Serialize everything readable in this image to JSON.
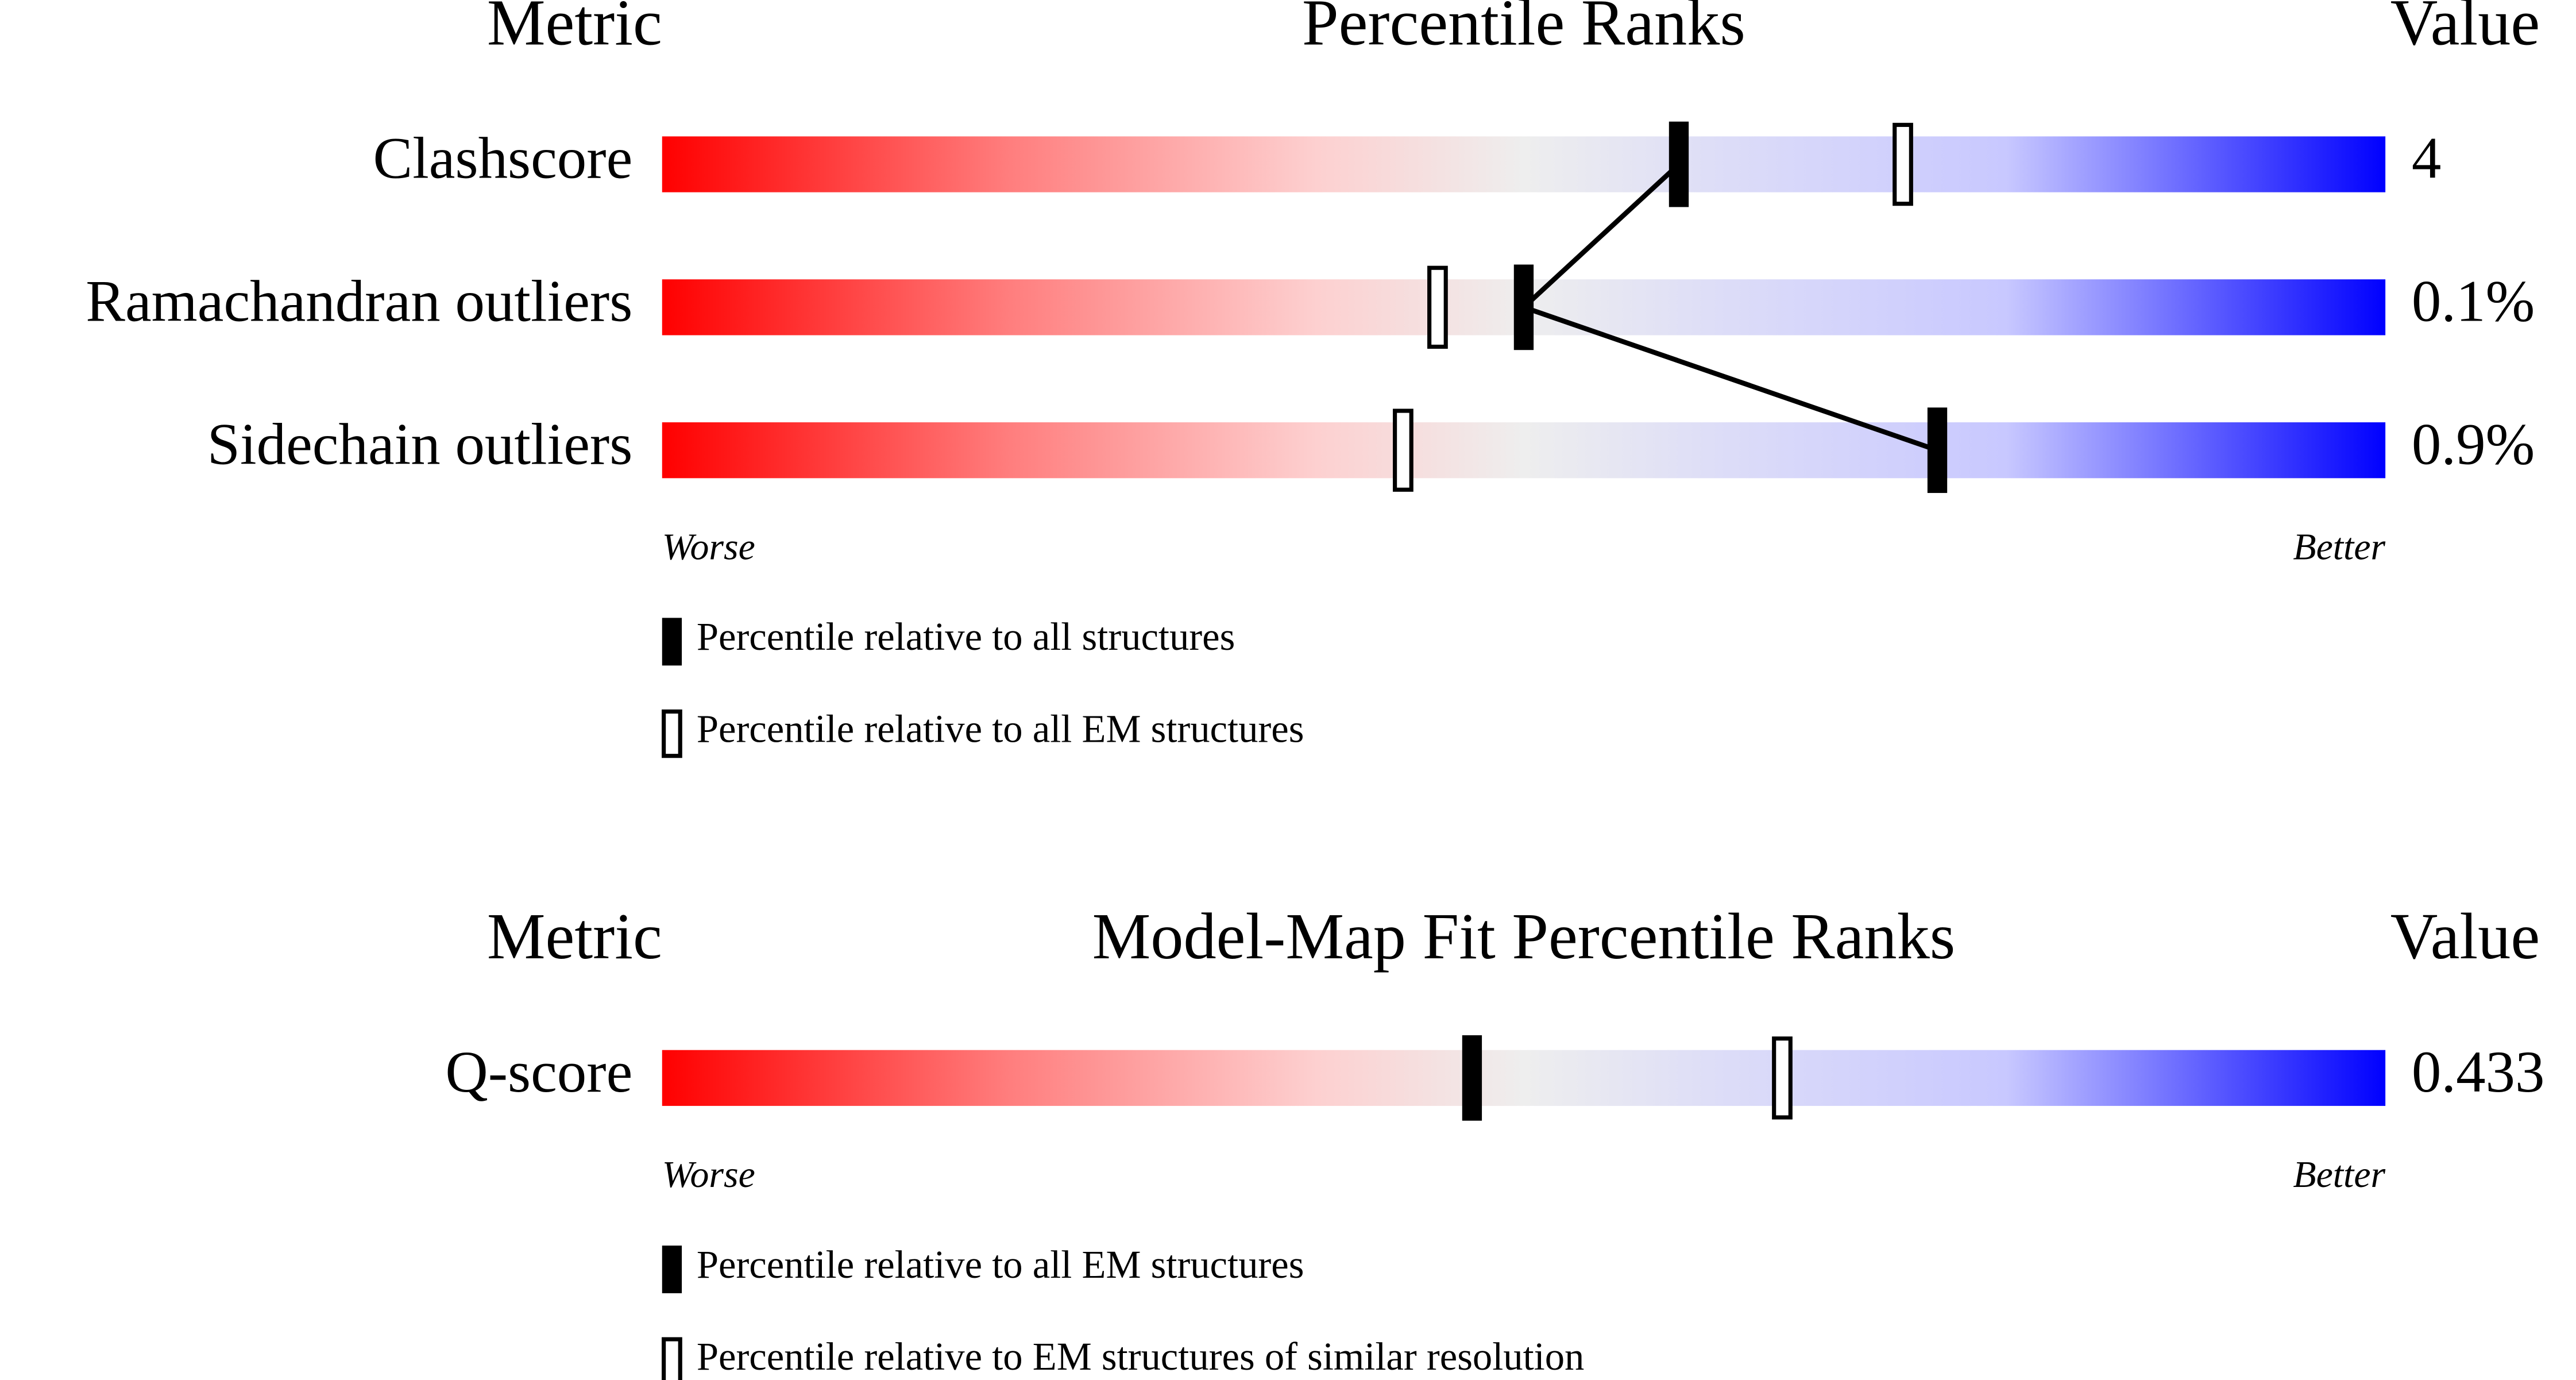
{
  "chart_data": [
    {
      "type": "slider",
      "header": {
        "metric": "Metric",
        "title": "Percentile Ranks",
        "value": "Value"
      },
      "categories": [
        "Clashscore",
        "Ramachandran outliers",
        "Sidechain outliers"
      ],
      "metric_values": [
        "4",
        "0.1%",
        "0.9%"
      ],
      "xlim": [
        0,
        100
      ],
      "worse_label": "Worse",
      "better_label": "Better",
      "series": [
        {
          "name": "Percentile relative to all structures",
          "style": "filled",
          "color": "#000000",
          "values": [
            59,
            50,
            74
          ]
        },
        {
          "name": "Percentile relative to all EM structures",
          "style": "hollow",
          "color": "#000000",
          "values": [
            72,
            45,
            43
          ]
        }
      ]
    },
    {
      "type": "slider",
      "header": {
        "metric": "Metric",
        "title": "Model-Map Fit Percentile Ranks",
        "value": "Value"
      },
      "categories": [
        "Q-score"
      ],
      "metric_values": [
        "0.433"
      ],
      "xlim": [
        0,
        100
      ],
      "worse_label": "Worse",
      "better_label": "Better",
      "series": [
        {
          "name": "Percentile relative to all EM structures",
          "style": "filled",
          "color": "#000000",
          "values": [
            47
          ]
        },
        {
          "name": "Percentile relative to EM structures of similar resolution",
          "style": "hollow",
          "color": "#000000",
          "values": [
            65
          ]
        }
      ]
    }
  ]
}
